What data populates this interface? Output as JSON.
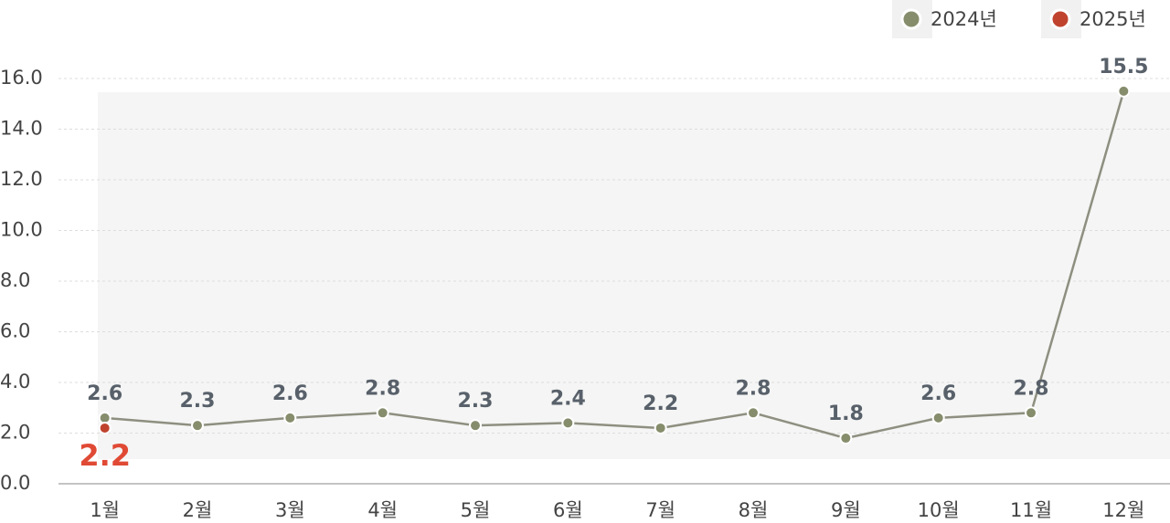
{
  "chart_data": {
    "type": "line",
    "categories": [
      "1월",
      "2월",
      "3월",
      "4월",
      "5월",
      "6월",
      "7월",
      "8월",
      "9월",
      "10월",
      "11월",
      "12월"
    ],
    "series": [
      {
        "name": "2024년",
        "color": "#868d6c",
        "values": [
          2.6,
          2.3,
          2.6,
          2.8,
          2.3,
          2.4,
          2.2,
          2.8,
          1.8,
          2.6,
          2.8,
          15.5
        ]
      },
      {
        "name": "2025년",
        "color": "#c0432e",
        "values": [
          2.2,
          null,
          null,
          null,
          null,
          null,
          null,
          null,
          null,
          null,
          null,
          null
        ]
      }
    ],
    "ylim": [
      0,
      16
    ],
    "yticks": [
      {
        "value": 0,
        "label": "0.0"
      },
      {
        "value": 2,
        "label": "2.0"
      },
      {
        "value": 4,
        "label": "4.0"
      },
      {
        "value": 6,
        "label": "6.0"
      },
      {
        "value": 8,
        "label": "8.0"
      },
      {
        "value": 10,
        "label": "10.0"
      },
      {
        "value": 12,
        "label": "12.0"
      },
      {
        "value": 14,
        "label": "14.0"
      },
      {
        "value": 16,
        "label": "16.0"
      }
    ],
    "grid": true,
    "legend": "top-right"
  }
}
